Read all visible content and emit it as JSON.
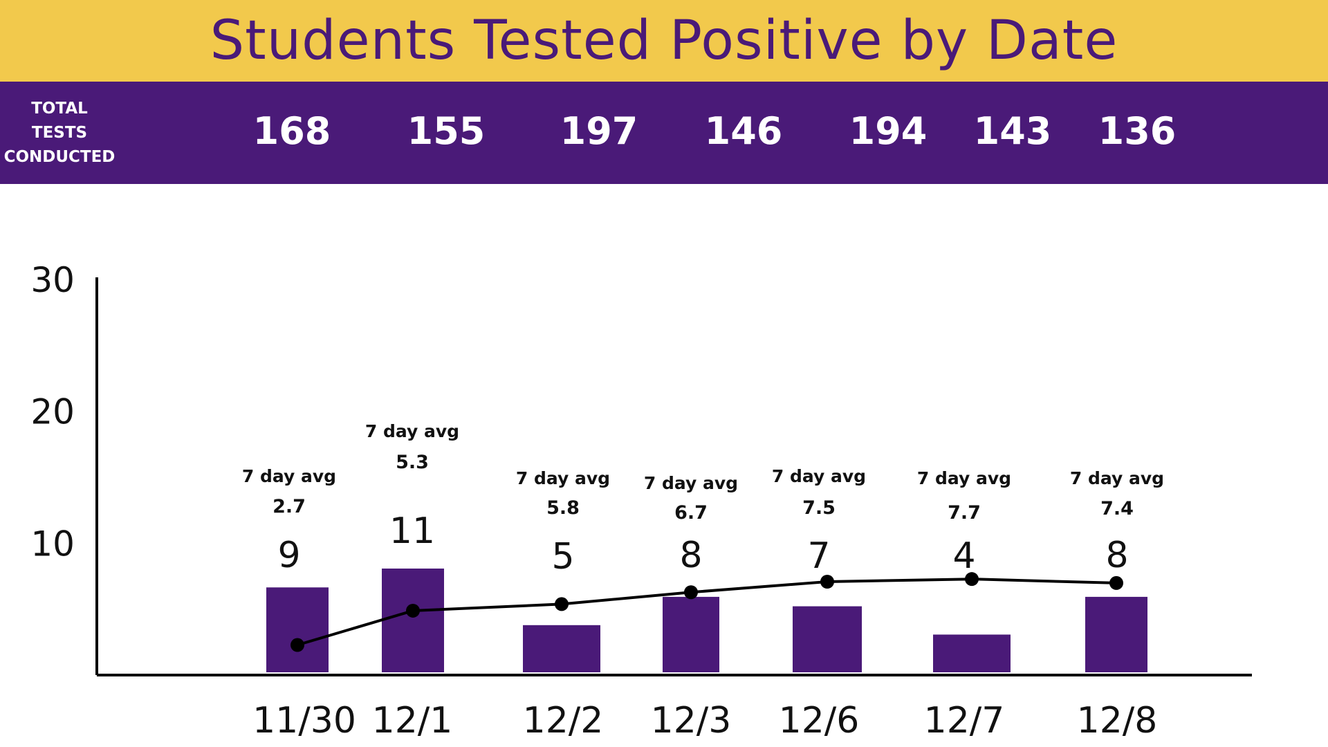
{
  "title": "Students Tested Positive by Date",
  "tests_conducted": {
    "label_lines": [
      "TOTAL",
      "TESTS",
      "CONDUCTED"
    ],
    "values": [
      168,
      155,
      197,
      146,
      194,
      143,
      136
    ]
  },
  "colors": {
    "title_band": "#f2c94c",
    "title_text": "#4a1a78",
    "purple": "#4a1a78",
    "line": "#000000"
  },
  "chart_data": {
    "type": "bar",
    "categories": [
      "11/30",
      "12/1",
      "12/2",
      "12/3",
      "12/6",
      "12/7",
      "12/8"
    ],
    "series": [
      {
        "values": [
          9,
          11,
          5,
          8,
          7,
          4,
          8
        ]
      },
      {
        "type": "line",
        "values": [
          2.7,
          5.3,
          5.8,
          6.7,
          7.5,
          7.7,
          7.4
        ]
      }
    ],
    "bar_labels": [
      "9",
      "11",
      "5",
      "8",
      "7",
      "4",
      "8"
    ],
    "avg_caption": "7 day avg",
    "avg_labels": [
      "2.7",
      "5.3",
      "5.8",
      "6.7",
      "7.5",
      "7.7",
      "7.4"
    ],
    "yticks": [
      10,
      20,
      30
    ],
    "ylim": [
      0,
      30
    ],
    "grid": false,
    "legend": "none"
  }
}
